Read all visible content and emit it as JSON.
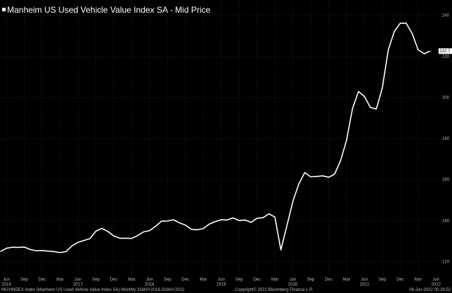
{
  "chart_data": {
    "type": "line",
    "title": "Manheim US Used Vehicle Value Index SA - Mid Price",
    "categories": [
      null,
      "Jun",
      null,
      null,
      "Sep",
      null,
      null,
      "Dec",
      null,
      null,
      "Mar",
      null,
      null,
      "Jun",
      null,
      null,
      "Sep",
      null,
      null,
      "Dec",
      null,
      null,
      "Mar",
      null,
      null,
      "Jun",
      null,
      null,
      "Sep",
      null,
      null,
      "Dec",
      null,
      null,
      "Mar",
      null,
      null,
      "Jun",
      null,
      null,
      "Sep",
      null,
      null,
      "Dec",
      null,
      null,
      "Mar",
      null,
      null,
      "Jun",
      null,
      null,
      "Sep",
      null,
      null,
      "Dec",
      null,
      null,
      "Mar",
      null,
      null,
      "Jun",
      null,
      null,
      "Sep",
      null,
      null,
      "Dec",
      null,
      null,
      "Mar",
      null,
      null
    ],
    "years": [
      "2016",
      "2017",
      "2018",
      "2019",
      "2020",
      "2021",
      "2022"
    ],
    "extra_x_label": "Jun",
    "series": [
      {
        "name": "Manheim US Used Vehicle Value Index SA - Mid Price",
        "color": "#ffffff",
        "values": [
          125.0,
          126.6,
          127.1,
          127.0,
          127.2,
          126.0,
          125.4,
          125.5,
          125.2,
          125.0,
          124.5,
          125.0,
          127.8,
          129.5,
          130.4,
          131.3,
          134.9,
          136.3,
          134.8,
          132.6,
          131.5,
          131.5,
          131.4,
          132.8,
          134.6,
          135.2,
          137.3,
          139.8,
          139.9,
          140.5,
          139.0,
          137.9,
          135.8,
          135.6,
          136.2,
          138.4,
          139.6,
          140.5,
          140.4,
          141.4,
          140.1,
          140.4,
          139.2,
          141.2,
          141.5,
          143.4,
          141.8,
          125.8,
          137.5,
          149.3,
          157.9,
          163.5,
          161.4,
          161.6,
          161.9,
          161.2,
          162.7,
          169.3,
          179.2,
          194.7,
          203.0,
          200.6,
          195.2,
          194.5,
          204.8,
          223.3,
          232.2,
          236.3,
          236.3,
          231.3,
          223.3,
          221.4,
          222.7
        ]
      }
    ],
    "ylim": [
      113.4,
      247.6
    ],
    "yticks": [
      120,
      140,
      160,
      180,
      200,
      220,
      240
    ],
    "grid": true,
    "footer": {
      "source": "MUVINDEX Index (Manheim US Used Vehicle Value Index SA) Monthly 31MAY2016-31MAY2022",
      "copyright": "Copyright© 2022 Bloomberg Finance L.P.",
      "timestamp": "08-Jun-2022 05:28:52"
    }
  }
}
